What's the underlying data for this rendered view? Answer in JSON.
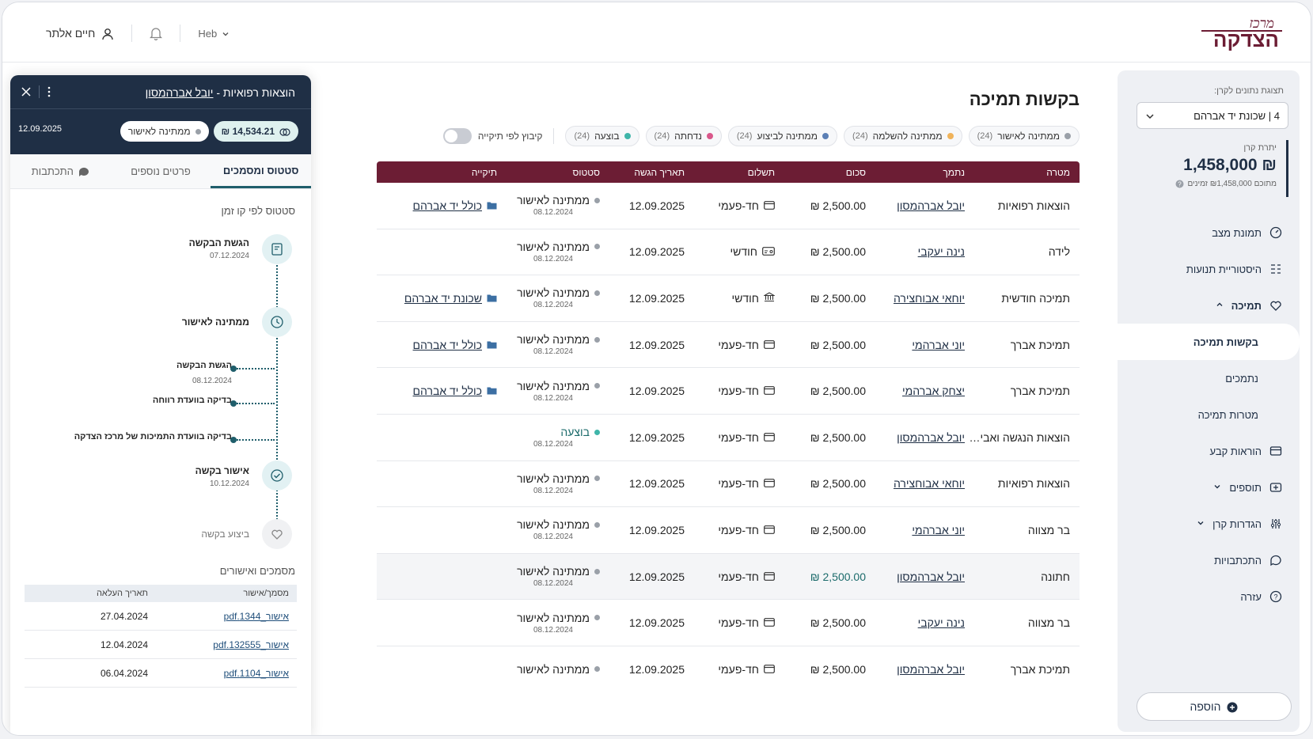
{
  "header": {
    "brand_line1": "מרכז",
    "brand_line2": "הצדקה",
    "user_name": "חיים אלתר",
    "lang": "Heb"
  },
  "sidebar": {
    "fund_label": "תצוגת נתונים לקרן:",
    "fund_value": "4 | שכונת יד אברהם",
    "balance_label": "יתרת קרן",
    "balance_value": "₪ 1,458,000",
    "balance_sub": "מתוכם ₪1,458,000 זמינים",
    "nav": [
      {
        "label": "תמונת מצב",
        "icon": "dashboard-icon"
      },
      {
        "label": "היסטוריית תנועות",
        "icon": "history-icon"
      },
      {
        "label": "תמיכה",
        "icon": "support-icon",
        "expanded": true
      },
      {
        "label": "בקשות תמיכה",
        "sub": true,
        "active": true
      },
      {
        "label": "נתמכים",
        "sub": true
      },
      {
        "label": "מטרות תמיכה",
        "sub": true
      },
      {
        "label": "הוראות קבע",
        "icon": "standing-order-icon"
      },
      {
        "label": "תוספים",
        "icon": "addons-icon",
        "collapsible": true
      },
      {
        "label": "הגדרות קרן",
        "icon": "settings-sliders-icon",
        "collapsible": true
      },
      {
        "label": "התכתבויות",
        "icon": "chat-icon"
      },
      {
        "label": "עזרה",
        "icon": "help-icon"
      }
    ],
    "add_label": "הוספה"
  },
  "main": {
    "title": "בקשות תמיכה",
    "filters": [
      {
        "label": "ממתינה לאישור",
        "count": "(24)",
        "color": "#9aa0a8"
      },
      {
        "label": "ממתינה להשלמה",
        "count": "(24)",
        "color": "#f0b35a"
      },
      {
        "label": "ממתינה לביצוע",
        "count": "(24)",
        "color": "#5b7fb5"
      },
      {
        "label": "נדחתה",
        "count": "(24)",
        "color": "#d9578b"
      },
      {
        "label": "בוצעה",
        "count": "(24)",
        "color": "#3fb5a9"
      }
    ],
    "group_toggle": "קיבוץ לפי תיקייה",
    "columns": [
      "מטרה",
      "נתמך",
      "סכום",
      "תשלום",
      "תאריך הגשה",
      "סטטוס",
      "תיקייה"
    ],
    "rows": [
      {
        "purpose": "הוצאות רפואיות",
        "recipient": "יובל אברהמסון",
        "amount": "2,500.00 ₪",
        "payment": "חד-פעמי",
        "pay_icon": "card",
        "date": "12.09.2025",
        "status": "ממתינה לאישור",
        "status_date": "08.12.2024",
        "folder": "כולל יד אברהם"
      },
      {
        "purpose": "לידה",
        "recipient": "נינה יעקבי",
        "amount": "2,500.00 ₪",
        "payment": "חודשי",
        "pay_icon": "card2",
        "date": "12.09.2025",
        "status": "ממתינה לאישור",
        "status_date": "08.12.2024",
        "folder": ""
      },
      {
        "purpose": "תמיכה חודשית",
        "recipient": "יוחאי אבוחצירה",
        "amount": "2,500.00 ₪",
        "payment": "חודשי",
        "pay_icon": "bank",
        "date": "12.09.2025",
        "status": "ממתינה לאישור",
        "status_date": "08.12.2024",
        "folder": "שכונת יד אברהם"
      },
      {
        "purpose": "תמיכת אברך",
        "recipient": "יוני אברהמי",
        "amount": "2,500.00 ₪",
        "payment": "חד-פעמי",
        "pay_icon": "card",
        "date": "12.09.2025",
        "status": "ממתינה לאישור",
        "status_date": "08.12.2024",
        "folder": "כולל יד אברהם"
      },
      {
        "purpose": "תמיכת אברך",
        "recipient": "יצחק אברהמי",
        "amount": "2,500.00 ₪",
        "payment": "חד-פעמי",
        "pay_icon": "card",
        "date": "12.09.2025",
        "status": "ממתינה לאישור",
        "status_date": "08.12.2024",
        "folder": "כולל יד אברהם"
      },
      {
        "purpose": "הוצאות הנגשה ואבי…",
        "recipient": "יובל אברהמסון",
        "amount": "2,500.00 ₪",
        "payment": "חד-פעמי",
        "pay_icon": "card",
        "date": "12.09.2025",
        "status": "בוצעה",
        "status_date": "08.12.2024",
        "folder": ""
      },
      {
        "purpose": "הוצאות רפואיות",
        "recipient": "יוחאי אבוחצירה",
        "amount": "2,500.00 ₪",
        "payment": "חד-פעמי",
        "pay_icon": "card",
        "date": "12.09.2025",
        "status": "ממתינה לאישור",
        "status_date": "08.12.2024",
        "folder": ""
      },
      {
        "purpose": "בר מצווה",
        "recipient": "יוני אברהמי",
        "amount": "2,500.00 ₪",
        "payment": "חד-פעמי",
        "pay_icon": "card",
        "date": "12.09.2025",
        "status": "ממתינה לאישור",
        "status_date": "08.12.2024",
        "folder": ""
      },
      {
        "purpose": "חתונה",
        "recipient": "יובל אברהמסון",
        "amount": "2,500.00 ₪",
        "payment": "חד-פעמי",
        "pay_icon": "card",
        "date": "12.09.2025",
        "status": "ממתינה לאישור",
        "status_date": "08.12.2024",
        "folder": ""
      },
      {
        "purpose": "בר מצווה",
        "recipient": "נינה יעקבי",
        "amount": "2,500.00 ₪",
        "payment": "חד-פעמי",
        "pay_icon": "card",
        "date": "12.09.2025",
        "status": "ממתינה לאישור",
        "status_date": "08.12.2024",
        "folder": ""
      },
      {
        "purpose": "תמיכת אברך",
        "recipient": "יובל אברהמסון",
        "amount": "2,500.00 ₪",
        "payment": "חד-פעמי",
        "pay_icon": "card",
        "date": "12.09.2025",
        "status": "ממתינה לאישור",
        "status_date": "",
        "folder": ""
      }
    ]
  },
  "drawer": {
    "title_prefix": "הוצאות רפואיות - ",
    "title_name": "יובל אברהמסון",
    "amount": "14,534.21 ₪",
    "status": "ממתינה לאישור",
    "date": "12.09.2025",
    "tabs": [
      "סטטוס ומסמכים",
      "פרטים נוספים",
      "התכתבות"
    ],
    "timeline_title": "סטטוס לפי קו זמן",
    "timeline": {
      "submit_label": "הגשת הבקשה",
      "submit_date": "07.12.2024",
      "pending_label": "ממתינה לאישור",
      "sub1_label": "הגשת הבקשה",
      "sub1_date": "08.12.2024",
      "sub2_label": "בדיקה בוועדת רווחה",
      "sub3_label": "בדיקה בוועדת התמיכות של מרכז הצדקה",
      "approve_label": "אישור בקשה",
      "approve_date": "10.12.2024",
      "exec_label": "ביצוע בקשה"
    },
    "docs_title": "מסמכים ואישורים",
    "doc_columns": [
      "מסמך/אישור",
      "תאריך העלאה"
    ],
    "docs": [
      {
        "name": "אישור_1344.pdf",
        "date": "27.04.2024"
      },
      {
        "name": "אישור_132555.pdf",
        "date": "12.04.2024"
      },
      {
        "name": "אישור_1104.pdf",
        "date": "06.04.2024"
      }
    ]
  }
}
